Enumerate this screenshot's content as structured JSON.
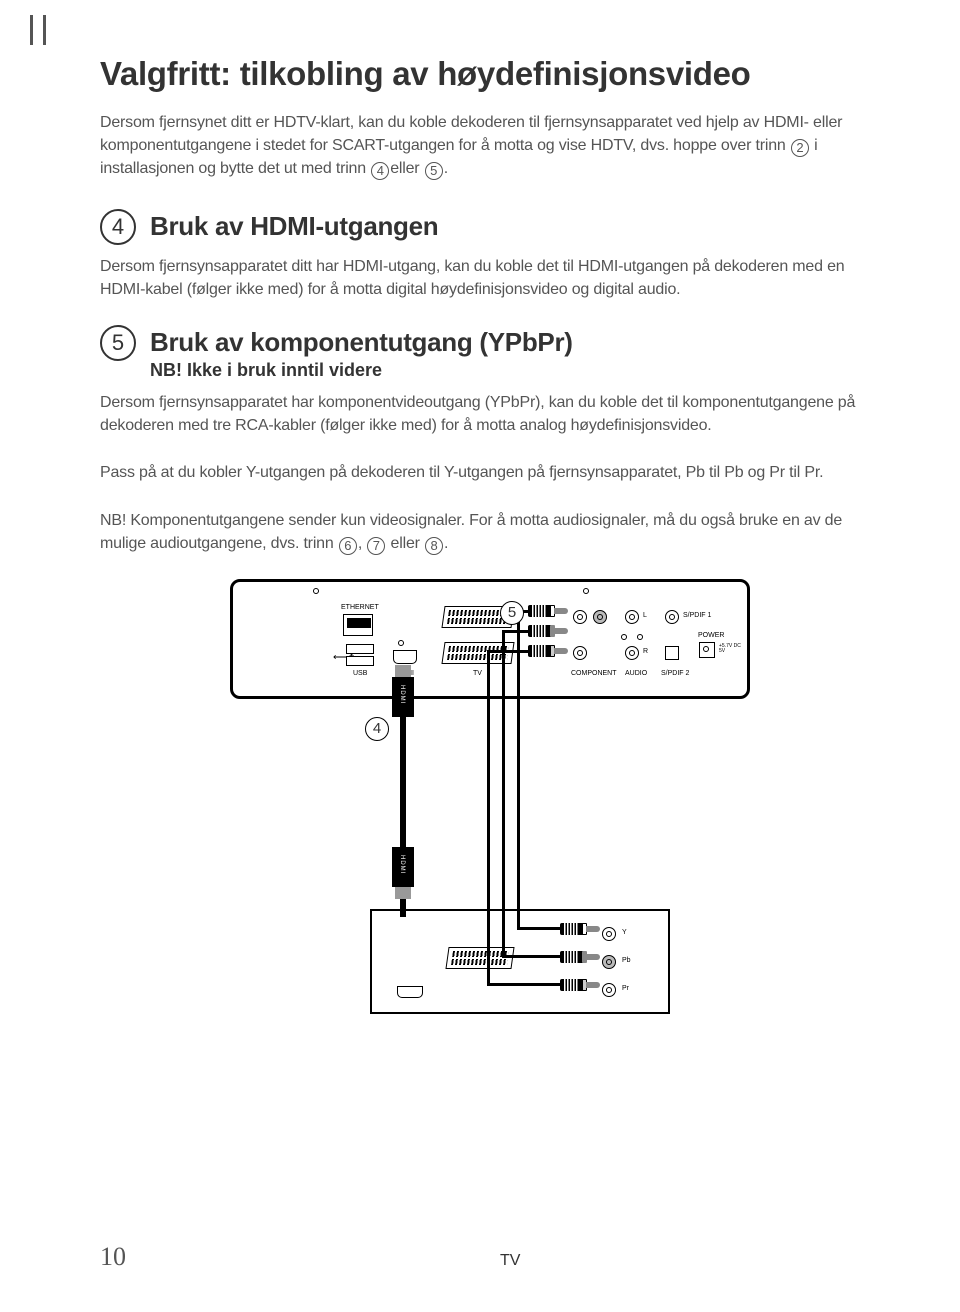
{
  "page_number": "10",
  "title": "Valgfritt: tilkobling av høydefinisjonsvideo",
  "intro_html": "Dersom fjernsynet ditt er HDTV-klart, kan du koble dekoderen til fjernsynsapparatet ved hjelp av HDMI- eller komponentutgangene i stedet for SCART-utgangen for å motta og vise HDTV, dvs. hoppe over trinn <span class='circ'>2</span> i installasjonen og bytte det ut med trinn <span class='circ'>4</span>eller <span class='circ'>5</span>.",
  "section4": {
    "num": "4",
    "title": "Bruk av HDMI-utgangen",
    "body": "Dersom fjernsynsapparatet ditt har HDMI-utgang, kan du koble det til HDMI-utgangen på dekoderen med en HDMI-kabel (følger ikke med) for å motta digital høydefinisjonsvideo og digital audio."
  },
  "section5": {
    "num": "5",
    "title": "Bruk av komponentutgang (YPbPr)",
    "subtitle": "NB! Ikke i bruk inntil videre",
    "body1": "Dersom fjernsynsapparatet har komponentvideoutgang (YPbPr), kan du koble det til komponent­utgangene på dekoderen med tre RCA-kabler (følger ikke med) for å motta analog høydefinisjonsvideo.",
    "body2": "Pass på at du kobler Y-utgangen på dekoderen til Y-utgangen på fjernsynsapparatet, Pb til Pb og Pr til Pr.",
    "body3_html": "NB! Komponentutgangene sender kun videosignaler. For å motta audiosignaler, må du også bruke en av de mulige audioutgangene, dvs. trinn <span class='circ'>6</span>, <span class='circ'>7</span> eller <span class='circ'>8</span>."
  },
  "diagram": {
    "tv_label": "TV",
    "callout4": "4",
    "callout5": "5",
    "labels": {
      "ethernet": "ETHERNET",
      "usb": "USB",
      "hdmi": "HDMI",
      "tv": "TV",
      "component": "COMPONENT",
      "audio": "AUDIO",
      "spdif1": "S/PDIF 1",
      "spdif2": "S/PDIF 2",
      "power": "POWER",
      "power_spec": "+5.7V DC 5V",
      "l": "L",
      "r": "R",
      "y": "Y",
      "pb": "Pb",
      "pr": "Pr"
    }
  }
}
